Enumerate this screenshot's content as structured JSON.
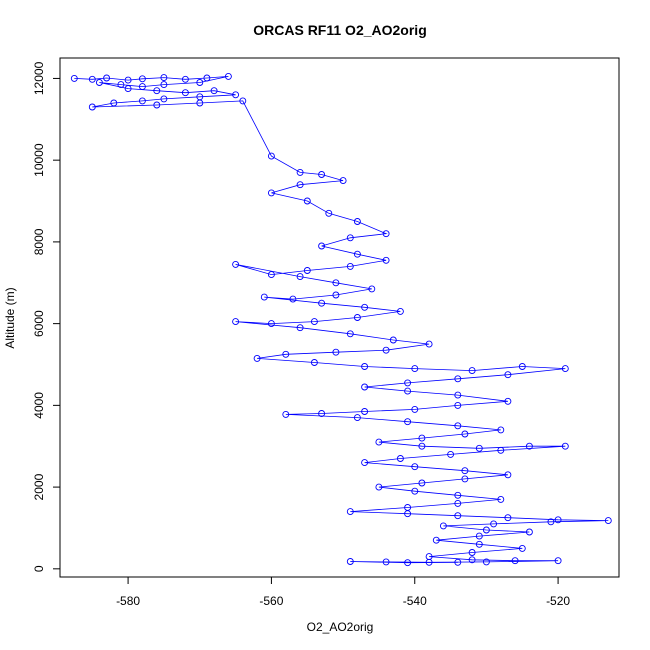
{
  "chart_data": {
    "type": "scatter",
    "title": "ORCAS RF11 O2_AO2orig",
    "xlabel": "O2_AO2orig",
    "ylabel": "Altitude (m)",
    "xlim": [
      -589.5,
      -511.5
    ],
    "ylim": [
      -200,
      12500
    ],
    "xticks": [
      -580,
      -560,
      -540,
      -520
    ],
    "yticks": [
      0,
      2000,
      4000,
      6000,
      8000,
      10000,
      12000
    ],
    "marker": "open-circle",
    "connected": true,
    "color": "#0000ff",
    "series": [
      {
        "values_note_removed": true,
        "points": [
          [
            -587.5,
            12000
          ],
          [
            -585.0,
            11980
          ],
          [
            -583.0,
            12010
          ],
          [
            -580.0,
            11960
          ],
          [
            -578.0,
            11990
          ],
          [
            -575.0,
            12020
          ],
          [
            -572.0,
            11980
          ],
          [
            -569.0,
            12010
          ],
          [
            -566.0,
            12050
          ],
          [
            -570.0,
            11900
          ],
          [
            -575.0,
            11850
          ],
          [
            -578.0,
            11800
          ],
          [
            -581.0,
            11850
          ],
          [
            -584.0,
            11900
          ],
          [
            -580.0,
            11750
          ],
          [
            -576.0,
            11700
          ],
          [
            -572.0,
            11650
          ],
          [
            -568.0,
            11700
          ],
          [
            -565.0,
            11600
          ],
          [
            -570.0,
            11550
          ],
          [
            -575.0,
            11500
          ],
          [
            -578.0,
            11450
          ],
          [
            -582.0,
            11400
          ],
          [
            -585.0,
            11300
          ],
          [
            -576.0,
            11350
          ],
          [
            -570.0,
            11400
          ],
          [
            -564.0,
            11450
          ],
          [
            -560.0,
            10100
          ],
          [
            -556.0,
            9700
          ],
          [
            -553.0,
            9650
          ],
          [
            -550.0,
            9500
          ],
          [
            -556.0,
            9400
          ],
          [
            -560.0,
            9200
          ],
          [
            -555.0,
            9000
          ],
          [
            -552.0,
            8700
          ],
          [
            -548.0,
            8500
          ],
          [
            -544.0,
            8200
          ],
          [
            -549.0,
            8100
          ],
          [
            -553.0,
            7900
          ],
          [
            -548.0,
            7700
          ],
          [
            -544.0,
            7550
          ],
          [
            -549.0,
            7400
          ],
          [
            -555.0,
            7300
          ],
          [
            -560.0,
            7200
          ],
          [
            -565.0,
            7450
          ],
          [
            -556.0,
            7150
          ],
          [
            -551.0,
            7000
          ],
          [
            -546.0,
            6850
          ],
          [
            -551.0,
            6700
          ],
          [
            -557.0,
            6600
          ],
          [
            -561.0,
            6650
          ],
          [
            -553.0,
            6500
          ],
          [
            -547.0,
            6400
          ],
          [
            -542.0,
            6300
          ],
          [
            -548.0,
            6150
          ],
          [
            -554.0,
            6050
          ],
          [
            -560.0,
            6000
          ],
          [
            -565.0,
            6050
          ],
          [
            -556.0,
            5900
          ],
          [
            -549.0,
            5750
          ],
          [
            -543.0,
            5600
          ],
          [
            -538.0,
            5500
          ],
          [
            -544.0,
            5350
          ],
          [
            -551.0,
            5300
          ],
          [
            -558.0,
            5250
          ],
          [
            -562.0,
            5150
          ],
          [
            -554.0,
            5050
          ],
          [
            -547.0,
            4950
          ],
          [
            -540.0,
            4900
          ],
          [
            -532.0,
            4850
          ],
          [
            -525.0,
            4950
          ],
          [
            -519.0,
            4900
          ],
          [
            -527.0,
            4750
          ],
          [
            -534.0,
            4650
          ],
          [
            -541.0,
            4550
          ],
          [
            -547.0,
            4450
          ],
          [
            -541.0,
            4350
          ],
          [
            -534.0,
            4250
          ],
          [
            -527.0,
            4100
          ],
          [
            -534.0,
            4000
          ],
          [
            -540.0,
            3900
          ],
          [
            -547.0,
            3850
          ],
          [
            -553.0,
            3800
          ],
          [
            -558.0,
            3780
          ],
          [
            -548.0,
            3700
          ],
          [
            -541.0,
            3600
          ],
          [
            -534.0,
            3500
          ],
          [
            -528.0,
            3400
          ],
          [
            -533.0,
            3300
          ],
          [
            -539.0,
            3200
          ],
          [
            -545.0,
            3100
          ],
          [
            -539.0,
            3000
          ],
          [
            -531.0,
            2950
          ],
          [
            -524.0,
            3000
          ],
          [
            -519.0,
            3000
          ],
          [
            -528.0,
            2900
          ],
          [
            -535.0,
            2800
          ],
          [
            -542.0,
            2700
          ],
          [
            -547.0,
            2600
          ],
          [
            -540.0,
            2500
          ],
          [
            -533.0,
            2400
          ],
          [
            -527.0,
            2300
          ],
          [
            -533.0,
            2200
          ],
          [
            -539.0,
            2100
          ],
          [
            -545.0,
            2000
          ],
          [
            -540.0,
            1900
          ],
          [
            -534.0,
            1800
          ],
          [
            -528.0,
            1700
          ],
          [
            -534.0,
            1600
          ],
          [
            -541.0,
            1500
          ],
          [
            -549.0,
            1400
          ],
          [
            -541.0,
            1350
          ],
          [
            -534.0,
            1300
          ],
          [
            -527.0,
            1250
          ],
          [
            -520.0,
            1200
          ],
          [
            -513.0,
            1180
          ],
          [
            -521.0,
            1150
          ],
          [
            -529.0,
            1100
          ],
          [
            -536.0,
            1050
          ],
          [
            -530.0,
            950
          ],
          [
            -524.0,
            900
          ],
          [
            -531.0,
            800
          ],
          [
            -537.0,
            700
          ],
          [
            -531.0,
            600
          ],
          [
            -525.0,
            500
          ],
          [
            -532.0,
            400
          ],
          [
            -538.0,
            300
          ],
          [
            -532.0,
            220
          ],
          [
            -526.0,
            200
          ],
          [
            -520.0,
            200
          ],
          [
            -530.0,
            170
          ],
          [
            -538.0,
            160
          ],
          [
            -544.0,
            170
          ],
          [
            -549.0,
            180
          ],
          [
            -541.0,
            150
          ],
          [
            -534.0,
            160
          ]
        ]
      }
    ]
  }
}
